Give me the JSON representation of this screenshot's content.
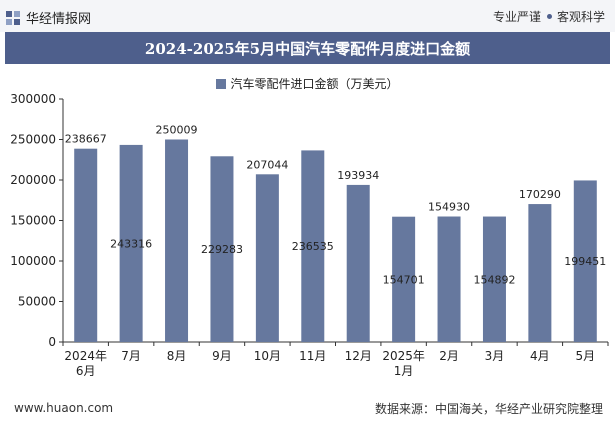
{
  "header": {
    "logo_text": "华经情报网",
    "slogan_left": "专业严谨",
    "slogan_right": "客观科学"
  },
  "title": "2024-2025年5月中国汽车零配件月度进口金额",
  "footer": {
    "website": "www.huaon.com",
    "source": "数据来源：中国海关，华经产业研究院整理"
  },
  "colors": {
    "bar": "#66789e",
    "title_band": "#4e5f8c",
    "axis": "#333333"
  },
  "chart_data": {
    "type": "bar",
    "categories": [
      [
        "2024年",
        "6月"
      ],
      [
        "7月"
      ],
      [
        "8月"
      ],
      [
        "9月"
      ],
      [
        "10月"
      ],
      [
        "11月"
      ],
      [
        "12月"
      ],
      [
        "2025年",
        "1月"
      ],
      [
        "2月"
      ],
      [
        "3月"
      ],
      [
        "4月"
      ],
      [
        "5月"
      ]
    ],
    "series": [
      {
        "name": "汽车零配件进口金额（万美元）",
        "values": [
          238667,
          243316,
          250009,
          229283,
          207044,
          236535,
          193934,
          154701,
          154930,
          154892,
          170290,
          199451
        ]
      }
    ],
    "label_position": [
      "top",
      "inside",
      "top",
      "inside",
      "top",
      "inside",
      "top",
      "inside",
      "top",
      "inside",
      "top",
      "inside"
    ],
    "yticks": [
      0,
      50000,
      100000,
      150000,
      200000,
      250000,
      300000
    ],
    "ylim": [
      0,
      300000
    ],
    "legend_position": "top-center"
  }
}
